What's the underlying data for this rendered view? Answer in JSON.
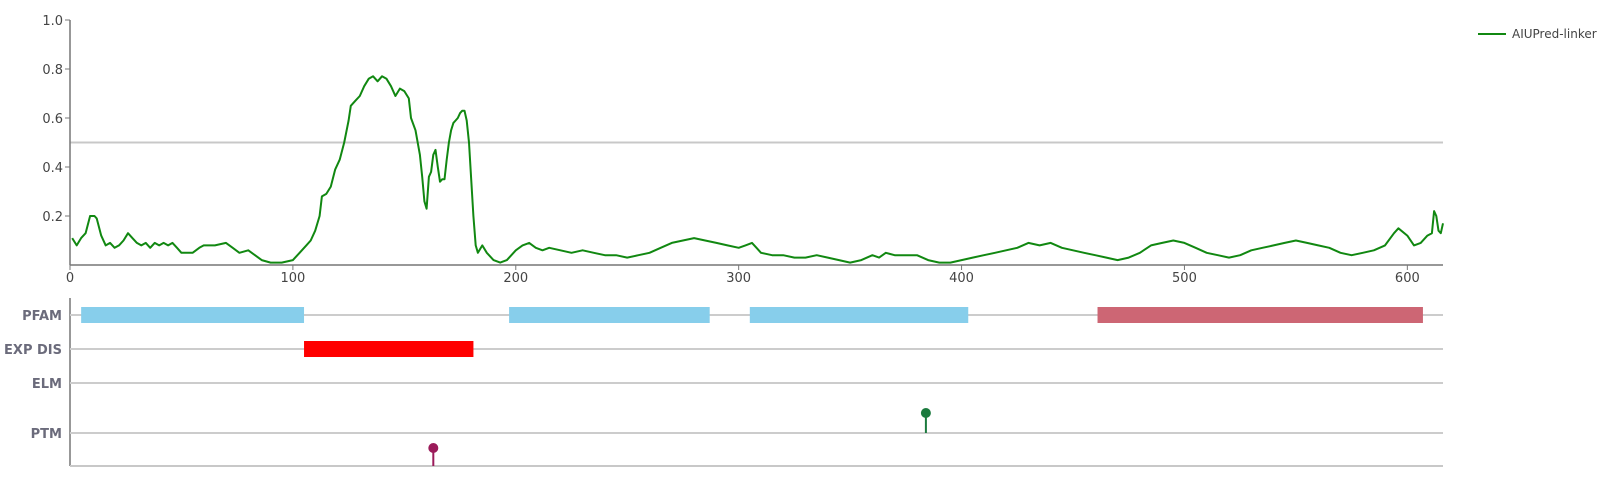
{
  "chart_data": {
    "type": "line",
    "xlim": [
      0,
      616
    ],
    "ylim": [
      0,
      1.0
    ],
    "x_ticks": [
      "0",
      "100",
      "200",
      "300",
      "400",
      "500",
      "600"
    ],
    "y_ticks": [
      "0.2",
      "0.4",
      "0.6",
      "0.8",
      "1.0"
    ],
    "threshold": 0.5,
    "legend_position": "top-right",
    "series": [
      {
        "name": "AIUPred-linker",
        "color": "#118811",
        "points": [
          [
            1,
            0.11
          ],
          [
            3,
            0.08
          ],
          [
            5,
            0.11
          ],
          [
            7,
            0.13
          ],
          [
            9,
            0.2
          ],
          [
            11,
            0.2
          ],
          [
            12,
            0.19
          ],
          [
            14,
            0.12
          ],
          [
            16,
            0.08
          ],
          [
            18,
            0.09
          ],
          [
            20,
            0.07
          ],
          [
            22,
            0.08
          ],
          [
            24,
            0.1
          ],
          [
            26,
            0.13
          ],
          [
            28,
            0.11
          ],
          [
            30,
            0.09
          ],
          [
            32,
            0.08
          ],
          [
            34,
            0.09
          ],
          [
            36,
            0.07
          ],
          [
            38,
            0.09
          ],
          [
            40,
            0.08
          ],
          [
            42,
            0.09
          ],
          [
            44,
            0.08
          ],
          [
            46,
            0.09
          ],
          [
            48,
            0.07
          ],
          [
            50,
            0.05
          ],
          [
            55,
            0.05
          ],
          [
            58,
            0.07
          ],
          [
            60,
            0.08
          ],
          [
            65,
            0.08
          ],
          [
            70,
            0.09
          ],
          [
            73,
            0.07
          ],
          [
            76,
            0.05
          ],
          [
            80,
            0.06
          ],
          [
            83,
            0.04
          ],
          [
            86,
            0.02
          ],
          [
            90,
            0.01
          ],
          [
            95,
            0.01
          ],
          [
            100,
            0.02
          ],
          [
            103,
            0.05
          ],
          [
            106,
            0.08
          ],
          [
            108,
            0.1
          ],
          [
            110,
            0.14
          ],
          [
            112,
            0.2
          ],
          [
            113,
            0.28
          ],
          [
            115,
            0.29
          ],
          [
            117,
            0.32
          ],
          [
            119,
            0.39
          ],
          [
            121,
            0.43
          ],
          [
            123,
            0.5
          ],
          [
            125,
            0.59
          ],
          [
            126,
            0.65
          ],
          [
            128,
            0.67
          ],
          [
            130,
            0.69
          ],
          [
            132,
            0.73
          ],
          [
            134,
            0.76
          ],
          [
            136,
            0.77
          ],
          [
            138,
            0.75
          ],
          [
            140,
            0.77
          ],
          [
            142,
            0.76
          ],
          [
            144,
            0.73
          ],
          [
            146,
            0.69
          ],
          [
            148,
            0.72
          ],
          [
            150,
            0.71
          ],
          [
            152,
            0.68
          ],
          [
            153,
            0.6
          ],
          [
            155,
            0.55
          ],
          [
            157,
            0.45
          ],
          [
            158,
            0.36
          ],
          [
            159,
            0.26
          ],
          [
            160,
            0.23
          ],
          [
            161,
            0.36
          ],
          [
            162,
            0.38
          ],
          [
            163,
            0.45
          ],
          [
            164,
            0.47
          ],
          [
            165,
            0.4
          ],
          [
            166,
            0.34
          ],
          [
            167,
            0.35
          ],
          [
            168,
            0.35
          ],
          [
            169,
            0.43
          ],
          [
            170,
            0.5
          ],
          [
            171,
            0.55
          ],
          [
            172,
            0.58
          ],
          [
            173,
            0.59
          ],
          [
            174,
            0.6
          ],
          [
            175,
            0.62
          ],
          [
            176,
            0.63
          ],
          [
            177,
            0.63
          ],
          [
            178,
            0.59
          ],
          [
            179,
            0.5
          ],
          [
            180,
            0.35
          ],
          [
            181,
            0.2
          ],
          [
            182,
            0.08
          ],
          [
            183,
            0.05
          ],
          [
            185,
            0.08
          ],
          [
            187,
            0.05
          ],
          [
            190,
            0.02
          ],
          [
            193,
            0.01
          ],
          [
            196,
            0.02
          ],
          [
            200,
            0.06
          ],
          [
            203,
            0.08
          ],
          [
            206,
            0.09
          ],
          [
            209,
            0.07
          ],
          [
            212,
            0.06
          ],
          [
            215,
            0.07
          ],
          [
            220,
            0.06
          ],
          [
            225,
            0.05
          ],
          [
            230,
            0.06
          ],
          [
            235,
            0.05
          ],
          [
            240,
            0.04
          ],
          [
            245,
            0.04
          ],
          [
            250,
            0.03
          ],
          [
            255,
            0.04
          ],
          [
            260,
            0.05
          ],
          [
            265,
            0.07
          ],
          [
            270,
            0.09
          ],
          [
            275,
            0.1
          ],
          [
            280,
            0.11
          ],
          [
            285,
            0.1
          ],
          [
            290,
            0.09
          ],
          [
            295,
            0.08
          ],
          [
            300,
            0.07
          ],
          [
            303,
            0.08
          ],
          [
            306,
            0.09
          ],
          [
            308,
            0.07
          ],
          [
            310,
            0.05
          ],
          [
            315,
            0.04
          ],
          [
            320,
            0.04
          ],
          [
            325,
            0.03
          ],
          [
            330,
            0.03
          ],
          [
            335,
            0.04
          ],
          [
            340,
            0.03
          ],
          [
            345,
            0.02
          ],
          [
            350,
            0.01
          ],
          [
            355,
            0.02
          ],
          [
            360,
            0.04
          ],
          [
            363,
            0.03
          ],
          [
            366,
            0.05
          ],
          [
            370,
            0.04
          ],
          [
            375,
            0.04
          ],
          [
            380,
            0.04
          ],
          [
            385,
            0.02
          ],
          [
            390,
            0.01
          ],
          [
            395,
            0.01
          ],
          [
            400,
            0.02
          ],
          [
            405,
            0.03
          ],
          [
            410,
            0.04
          ],
          [
            415,
            0.05
          ],
          [
            420,
            0.06
          ],
          [
            425,
            0.07
          ],
          [
            430,
            0.09
          ],
          [
            435,
            0.08
          ],
          [
            440,
            0.09
          ],
          [
            445,
            0.07
          ],
          [
            450,
            0.06
          ],
          [
            455,
            0.05
          ],
          [
            460,
            0.04
          ],
          [
            465,
            0.03
          ],
          [
            470,
            0.02
          ],
          [
            475,
            0.03
          ],
          [
            480,
            0.05
          ],
          [
            485,
            0.08
          ],
          [
            490,
            0.09
          ],
          [
            495,
            0.1
          ],
          [
            500,
            0.09
          ],
          [
            505,
            0.07
          ],
          [
            510,
            0.05
          ],
          [
            515,
            0.04
          ],
          [
            520,
            0.03
          ],
          [
            525,
            0.04
          ],
          [
            530,
            0.06
          ],
          [
            535,
            0.07
          ],
          [
            540,
            0.08
          ],
          [
            545,
            0.09
          ],
          [
            550,
            0.1
          ],
          [
            555,
            0.09
          ],
          [
            560,
            0.08
          ],
          [
            565,
            0.07
          ],
          [
            570,
            0.05
          ],
          [
            575,
            0.04
          ],
          [
            580,
            0.05
          ],
          [
            585,
            0.06
          ],
          [
            590,
            0.08
          ],
          [
            594,
            0.13
          ],
          [
            596,
            0.15
          ],
          [
            600,
            0.12
          ],
          [
            603,
            0.08
          ],
          [
            606,
            0.09
          ],
          [
            609,
            0.12
          ],
          [
            611,
            0.13
          ],
          [
            612,
            0.22
          ],
          [
            613,
            0.2
          ],
          [
            614,
            0.14
          ],
          [
            615,
            0.13
          ],
          [
            616,
            0.17
          ]
        ]
      }
    ],
    "tracks": [
      {
        "label": "PFAM",
        "segments": [
          {
            "start": 5,
            "end": 105,
            "color": "#87ceeb"
          },
          {
            "start": 197,
            "end": 287,
            "color": "#87ceeb"
          },
          {
            "start": 305,
            "end": 403,
            "color": "#87ceeb"
          },
          {
            "start": 461,
            "end": 607,
            "color": "#cd6674"
          }
        ]
      },
      {
        "label": "EXP DIS",
        "segments": [
          {
            "start": 105,
            "end": 181,
            "color": "#ff0000"
          }
        ]
      },
      {
        "label": "ELM",
        "segments": []
      },
      {
        "label": "PTM",
        "markers": [
          {
            "pos": 163,
            "direction": "down",
            "color": "#9b1b5a"
          },
          {
            "pos": 384,
            "direction": "up",
            "color": "#1b7a3e"
          }
        ]
      }
    ]
  }
}
